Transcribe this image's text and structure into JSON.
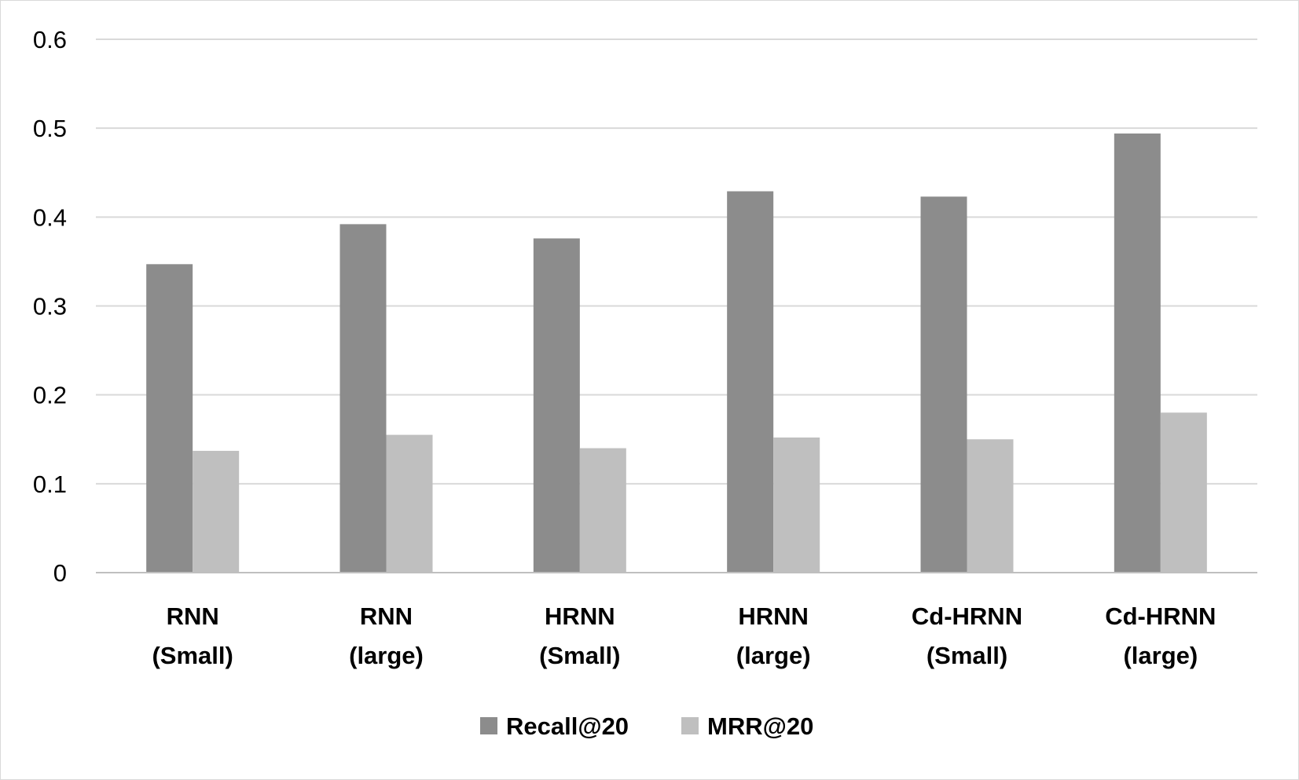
{
  "chart_data": {
    "type": "bar",
    "title": "",
    "xlabel": "",
    "ylabel": "",
    "categories": [
      [
        "RNN",
        "(Small)"
      ],
      [
        "RNN",
        "(large)"
      ],
      [
        "HRNN",
        "(Small)"
      ],
      [
        "HRNN",
        "(large)"
      ],
      [
        "Cd-HRNN",
        "(Small)"
      ],
      [
        "Cd-HRNN",
        "(large)"
      ]
    ],
    "series": [
      {
        "name": "Recall@20",
        "color": "#8c8c8c",
        "values": [
          0.347,
          0.392,
          0.376,
          0.429,
          0.423,
          0.494
        ]
      },
      {
        "name": "MRR@20",
        "color": "#bfbfbf",
        "values": [
          0.137,
          0.155,
          0.14,
          0.152,
          0.15,
          0.18
        ]
      }
    ],
    "ylim": [
      0,
      0.6
    ],
    "yticks": [
      "0",
      "0.1",
      "0.2",
      "0.3",
      "0.4",
      "0.5",
      "0.6"
    ],
    "grid": true,
    "legend_position": "bottom",
    "colors": {
      "gridline": "#d9d9d9",
      "axis": "#bfbfbf"
    }
  }
}
